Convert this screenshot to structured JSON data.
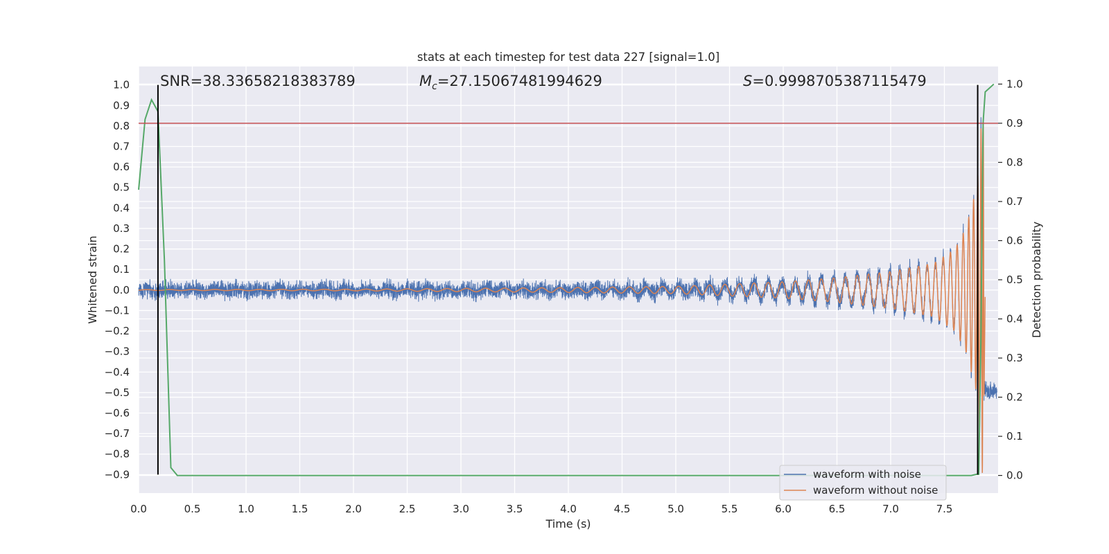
{
  "chart_data": {
    "type": "line",
    "title": "stats at each timestep for test data 227 [signal=1.0]",
    "xlabel": "Time (s)",
    "ylabel": "Whitened strain",
    "y2label": "Detection probability",
    "xlim": [
      0.0,
      8.0
    ],
    "ylim": [
      -0.99,
      1.09
    ],
    "y2lim": [
      -0.045,
      1.045
    ],
    "xticks": [
      0.0,
      0.5,
      1.0,
      1.5,
      2.0,
      2.5,
      3.0,
      3.5,
      4.0,
      4.5,
      5.0,
      5.5,
      6.0,
      6.5,
      7.0,
      7.5
    ],
    "yticks": [
      -0.9,
      -0.8,
      -0.7,
      -0.6,
      -0.5,
      -0.4,
      -0.3,
      -0.2,
      -0.1,
      0.0,
      0.1,
      0.2,
      0.3,
      0.4,
      0.5,
      0.6,
      0.7,
      0.8,
      0.9,
      1.0
    ],
    "y2ticks": [
      0.0,
      0.1,
      0.2,
      0.3,
      0.4,
      0.5,
      0.6,
      0.7,
      0.8,
      0.9,
      1.0
    ],
    "grid": true,
    "legend_position": "lower-right",
    "annotations": {
      "snr": "SNR=38.33658218383789",
      "mc_symbol": "M",
      "mc_sub": "c",
      "mc_value": "=27.15067481994629",
      "s_symbol": "S",
      "s_value": "=0.9998705387115479"
    },
    "series": [
      {
        "name": "waveform with noise",
        "color": "#4c72b0",
        "axis": "left",
        "noise_amplitude": 0.05,
        "envelope_t": [
          0.0,
          4.0,
          5.0,
          6.0,
          6.5,
          7.0,
          7.4,
          7.6,
          7.7,
          7.8,
          7.83,
          7.85,
          7.87
        ],
        "envelope_a": [
          0.004,
          0.01,
          0.018,
          0.04,
          0.06,
          0.09,
          0.13,
          0.2,
          0.3,
          0.5,
          0.7,
          0.95,
          0.5
        ]
      },
      {
        "name": "waveform without noise",
        "color": "#dd8452",
        "axis": "left",
        "envelope_t": [
          0.0,
          2.0,
          3.0,
          4.0,
          5.0,
          6.0,
          6.5,
          7.0,
          7.4,
          7.6,
          7.7,
          7.8,
          7.83,
          7.86,
          7.88
        ],
        "envelope_a": [
          0.002,
          0.004,
          0.008,
          0.012,
          0.018,
          0.04,
          0.06,
          0.09,
          0.13,
          0.2,
          0.3,
          0.5,
          0.7,
          0.95,
          0.0
        ]
      },
      {
        "name": "detection probability",
        "color": "#55a868",
        "axis": "right",
        "x": [
          0.0,
          0.06,
          0.12,
          0.18,
          0.24,
          0.3,
          0.36,
          0.42,
          7.75,
          7.8,
          7.82,
          7.84,
          7.86,
          7.88,
          7.92,
          7.96
        ],
        "values": [
          0.73,
          0.91,
          0.96,
          0.93,
          0.55,
          0.02,
          0.0,
          0.0,
          0.0,
          0.003,
          0.003,
          0.35,
          0.9,
          0.98,
          0.99,
          1.0
        ]
      }
    ],
    "threshold": {
      "color": "#c44e52",
      "axis": "right",
      "value": 0.9
    },
    "trigger_lines": {
      "color": "#000000",
      "x": [
        0.18,
        7.81
      ],
      "ymin": -0.9,
      "ymax": 1.0
    }
  }
}
